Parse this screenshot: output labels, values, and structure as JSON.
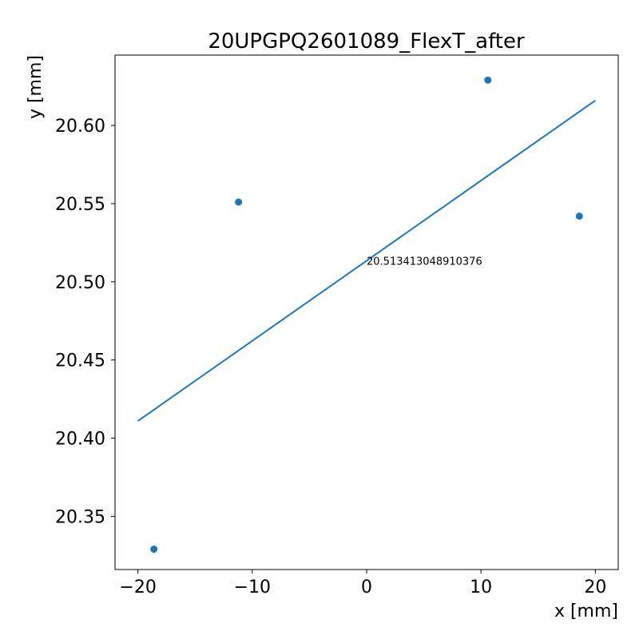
{
  "chart_data": {
    "type": "scatter",
    "title": "20UPGPQ2601089_FlexT_after",
    "xlabel": "x [mm]",
    "ylabel": "y [mm]",
    "xlim": [
      -22,
      22
    ],
    "ylim": [
      20.316,
      20.645
    ],
    "x_ticks": [
      -20,
      -10,
      0,
      10,
      20
    ],
    "x_tick_labels": [
      "−20",
      "−10",
      "0",
      "10",
      "20"
    ],
    "y_ticks": [
      20.35,
      20.4,
      20.45,
      20.5,
      20.55,
      20.6
    ],
    "y_tick_labels": [
      "20.35",
      "20.40",
      "20.45",
      "20.50",
      "20.55",
      "20.60"
    ],
    "grid": false,
    "series": [
      {
        "type": "scatter",
        "x": [
          -18.6,
          -11.2,
          10.6,
          18.6
        ],
        "y": [
          20.329,
          20.551,
          20.629,
          20.542
        ],
        "color": "#1f77b4"
      },
      {
        "type": "line",
        "x": [
          -20,
          20
        ],
        "y": [
          20.411,
          20.616
        ],
        "color": "#1f77b4"
      }
    ],
    "annotations": [
      {
        "text": "20.513413048910376",
        "x": 0,
        "y": 20.513
      }
    ]
  }
}
